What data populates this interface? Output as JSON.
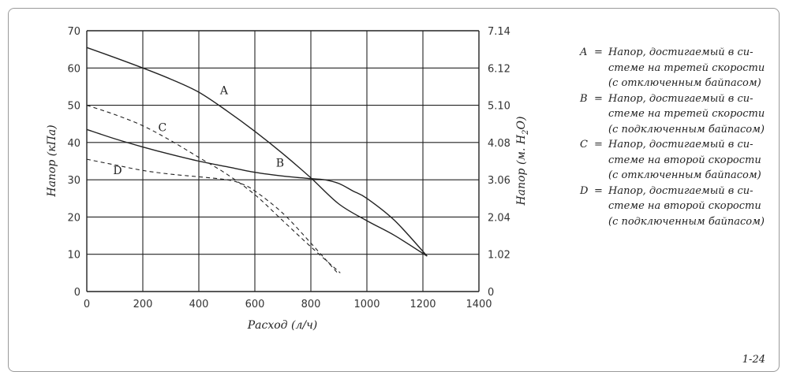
{
  "chart_data": {
    "type": "line",
    "xlabel": "Расход (л/ч)",
    "ylabel_left": "Напор (кПа)",
    "ylabel_right_prefix": "Напор (м. H",
    "ylabel_right_sub": "2",
    "ylabel_right_suffix": "O)",
    "xlim": [
      0,
      1400
    ],
    "ylim": [
      0,
      70
    ],
    "x_ticks": [
      "0",
      "200",
      "400",
      "600",
      "800",
      "1000",
      "1200",
      "1400"
    ],
    "y_ticks_left": [
      "0",
      "10",
      "20",
      "30",
      "40",
      "50",
      "60",
      "70"
    ],
    "y_ticks_right": [
      "0",
      "1.02",
      "2.04",
      "3.06",
      "4.08",
      "5.10",
      "6.12",
      "7.14"
    ],
    "grid": true,
    "series": [
      {
        "name": "A",
        "style": "solid",
        "x": [
          0,
          100,
          200,
          300,
          400,
          500,
          600,
          700,
          800,
          900,
          1000,
          1100,
          1215
        ],
        "y": [
          65.5,
          62.8,
          60,
          57,
          53.5,
          48.5,
          43,
          37,
          30.5,
          23.5,
          19,
          15,
          9.5
        ]
      },
      {
        "name": "B",
        "style": "solid",
        "x": [
          0,
          100,
          200,
          300,
          400,
          500,
          600,
          700,
          800,
          850,
          900,
          950,
          1000,
          1100,
          1215
        ],
        "y": [
          43.5,
          41,
          38.8,
          36.8,
          35,
          33.5,
          32,
          31,
          30.3,
          30,
          29,
          27,
          25,
          19,
          9.5
        ]
      },
      {
        "name": "C",
        "style": "dashed",
        "x": [
          0,
          100,
          200,
          300,
          400,
          500,
          600,
          700,
          800,
          905
        ],
        "y": [
          50,
          47.5,
          44.5,
          40.5,
          36,
          31.5,
          26,
          19,
          12,
          5
        ]
      },
      {
        "name": "D",
        "style": "dashed",
        "x": [
          0,
          100,
          200,
          300,
          400,
          500,
          550,
          600,
          700,
          800,
          895
        ],
        "y": [
          35.5,
          34,
          32.5,
          31.5,
          30.8,
          30,
          29,
          27,
          21,
          13,
          5
        ]
      }
    ],
    "curve_labels": [
      {
        "text": "A",
        "x": 490,
        "y": 53
      },
      {
        "text": "B",
        "x": 690,
        "y": 33.5
      },
      {
        "text": "C",
        "x": 270,
        "y": 43
      },
      {
        "text": "D",
        "x": 110,
        "y": 31.5
      }
    ]
  },
  "legend": [
    {
      "key": "A",
      "eq": "=",
      "lines": [
        "Напор, достигаемый в си-",
        "стеме на третей скорости",
        "(с отключенным байпасом)"
      ]
    },
    {
      "key": "B",
      "eq": "=",
      "lines": [
        "Напор, достигаемый в си-",
        "стеме на третей скорости",
        "(с подключенным байпасом)"
      ]
    },
    {
      "key": "C",
      "eq": "=",
      "lines": [
        "Напор, достигаемый в си-",
        "стеме на второй скорости",
        "(с отключенным байпасом)"
      ]
    },
    {
      "key": "D",
      "eq": "=",
      "lines": [
        "Напор, достигаемый в си-",
        "стеме на второй скорости",
        "(с подключенным байпасом)"
      ]
    }
  ],
  "figure_number": "1-24"
}
